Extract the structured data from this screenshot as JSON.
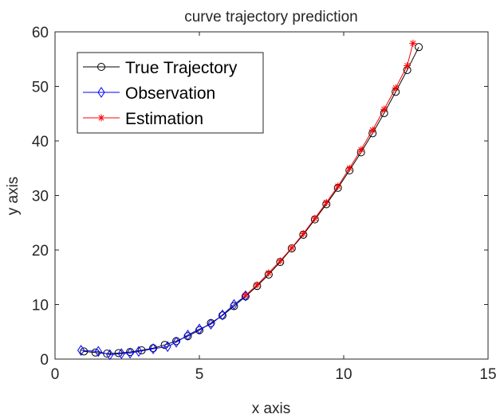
{
  "chart_data": {
    "type": "line",
    "title": "curve trajectory prediction",
    "xlabel": "x axis",
    "ylabel": "y axis",
    "xlim": [
      0,
      15
    ],
    "ylim": [
      0,
      60
    ],
    "xticks": [
      0,
      5,
      10,
      15
    ],
    "yticks": [
      0,
      10,
      20,
      30,
      40,
      50,
      60
    ],
    "grid": false,
    "legend_position": "top-left",
    "series": [
      {
        "name": "True Trajectory",
        "color": "#000000",
        "marker": "circle",
        "x": [
          1.0,
          1.4,
          1.8,
          2.2,
          2.6,
          3.0,
          3.4,
          3.8,
          4.2,
          4.6,
          5.0,
          5.4,
          5.8,
          6.2,
          6.6,
          7.0,
          7.4,
          7.8,
          8.2,
          8.6,
          9.0,
          9.4,
          9.8,
          10.2,
          10.6,
          11.0,
          11.4,
          11.8,
          12.2,
          12.6
        ],
        "y": [
          1.4,
          1.2,
          1.0,
          1.1,
          1.3,
          1.6,
          2.0,
          2.6,
          3.3,
          4.2,
          5.3,
          6.6,
          8.0,
          9.7,
          11.5,
          13.4,
          15.5,
          17.8,
          20.3,
          22.8,
          25.6,
          28.4,
          31.4,
          34.6,
          37.9,
          41.4,
          45.1,
          49.0,
          53.0,
          57.2
        ]
      },
      {
        "name": "Observation",
        "color": "#0000ff",
        "marker": "diamond",
        "x": [
          0.9,
          1.5,
          1.9,
          2.3,
          2.6,
          2.9,
          3.4,
          3.9,
          4.2,
          4.6,
          5.0,
          5.4,
          5.8,
          6.2,
          6.6
        ],
        "y": [
          1.6,
          1.4,
          0.8,
          1.0,
          1.1,
          1.4,
          1.9,
          2.3,
          3.1,
          4.4,
          5.5,
          6.4,
          8.1,
          10.0,
          11.6
        ]
      },
      {
        "name": "Estimation",
        "color": "#ff0000",
        "marker": "star",
        "x": [
          6.6,
          7.0,
          7.4,
          7.8,
          8.2,
          8.6,
          9.0,
          9.4,
          9.8,
          10.2,
          10.6,
          11.0,
          11.4,
          11.8,
          12.2,
          12.4
        ],
        "y": [
          11.7,
          13.6,
          15.8,
          18.0,
          20.4,
          23.0,
          25.8,
          28.7,
          31.7,
          35.0,
          38.4,
          42.0,
          45.8,
          49.7,
          53.8,
          57.9
        ]
      }
    ]
  }
}
